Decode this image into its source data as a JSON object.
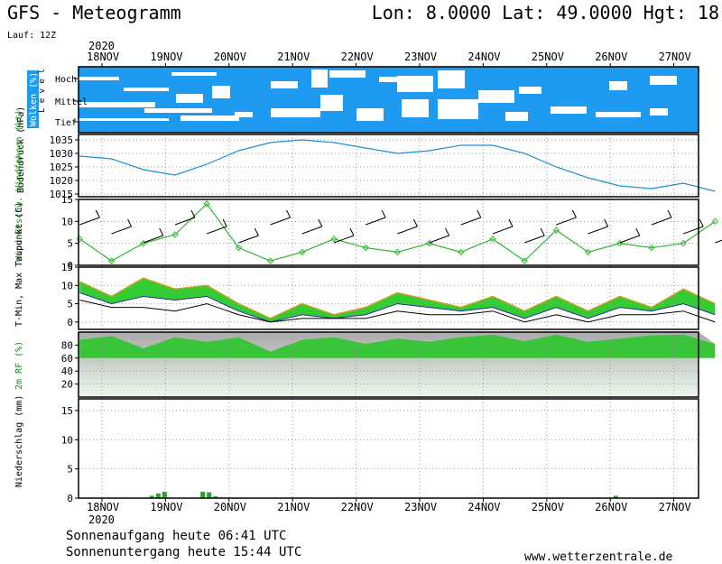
{
  "header": {
    "title": "GFS - Meteogramm",
    "coords": "Lon: 8.0000 Lat: 49.0000 Hgt: 18",
    "run": "Lauf: 12Z"
  },
  "dates": [
    "18NOV",
    "19NOV",
    "20NOV",
    "21NOV",
    "22NOV",
    "23NOV",
    "24NOV",
    "25NOV",
    "26NOV",
    "27NOV"
  ],
  "year": "2020",
  "footer": {
    "sunrise": "Sonnenaufgang heute 06:41 UTC",
    "sunset": "Sonnenuntergang heute 15:44 UTC",
    "site": "www.wetterzentrale.de"
  },
  "colors": {
    "clouds": "#1e9bf0",
    "pressure": "#1e90d8",
    "wind": "#2eb82e",
    "tmax": "#e63b2e",
    "tmin": "#2a2ab0",
    "humidity": "#3ac43a",
    "precip": "#2ea32e"
  },
  "chart_data": [
    {
      "type": "heatmap",
      "ylabel": "Wolken (%)",
      "levels": [
        "Hoch",
        "Mittel",
        "Tief"
      ],
      "level_axis_label": "L e v e l"
    },
    {
      "type": "line",
      "ylabel": "Bodendruck (hPa)",
      "ylim": [
        1014,
        1037
      ],
      "yticks": [
        1015,
        1020,
        1025,
        1030,
        1035
      ],
      "x": [
        0,
        0.5,
        1,
        1.5,
        2,
        2.5,
        3,
        3.5,
        4,
        4.5,
        5,
        5.5,
        6,
        6.5,
        7,
        7.5,
        8,
        8.5,
        9,
        9.5,
        10
      ],
      "values": [
        1029,
        1028,
        1024,
        1022,
        1026,
        1031,
        1034,
        1035,
        1034,
        1032,
        1030,
        1031,
        1033,
        1033,
        1030,
        1025,
        1021,
        1018,
        1017,
        1019,
        1016
      ]
    },
    {
      "type": "line",
      "ylabel": "Wind Geschw. Windfahnen (kt)",
      "ylim": [
        0,
        15
      ],
      "yticks": [
        0,
        5,
        10,
        15
      ],
      "x": [
        0,
        0.5,
        1,
        1.5,
        2,
        2.5,
        3,
        3.5,
        4,
        4.5,
        5,
        5.5,
        6,
        6.5,
        7,
        7.5,
        8,
        8.5,
        9,
        9.5,
        10
      ],
      "values": [
        6,
        1,
        5,
        7,
        14,
        4,
        1,
        3,
        6,
        4,
        3,
        5,
        3,
        6,
        1,
        8,
        3,
        5,
        4,
        5,
        10
      ]
    },
    {
      "type": "area",
      "ylabel": "T-Min, Max Taupunkt (C)",
      "ylim": [
        -2,
        15
      ],
      "yticks": [
        0,
        5,
        10,
        15
      ],
      "x": [
        0,
        0.5,
        1,
        1.5,
        2,
        2.5,
        3,
        3.5,
        4,
        4.5,
        5,
        5.5,
        6,
        6.5,
        7,
        7.5,
        8,
        8.5,
        9,
        9.5,
        10
      ],
      "series": [
        {
          "name": "Max",
          "values": [
            11,
            7,
            12,
            9,
            10,
            5,
            1,
            5,
            2,
            4,
            8,
            6,
            4,
            7,
            3,
            7,
            3,
            7,
            4,
            9,
            5
          ]
        },
        {
          "name": "Min",
          "values": [
            8,
            5,
            7,
            6,
            7,
            3,
            0,
            2,
            1,
            2,
            5,
            4,
            3,
            4,
            1,
            4,
            1,
            4,
            3,
            5,
            2
          ]
        },
        {
          "name": "Taupunkt",
          "values": [
            6,
            4,
            4,
            3,
            5,
            2,
            0,
            1,
            1,
            1,
            3,
            2,
            2,
            3,
            0,
            2,
            0,
            2,
            2,
            3,
            0
          ]
        }
      ]
    },
    {
      "type": "area",
      "ylabel": "2m RF (%)",
      "ylim": [
        0,
        100
      ],
      "yticks": [
        20,
        40,
        60,
        80
      ],
      "x": [
        0,
        0.5,
        1,
        1.5,
        2,
        2.5,
        3,
        3.5,
        4,
        4.5,
        5,
        5.5,
        6,
        6.5,
        7,
        7.5,
        8,
        8.5,
        9,
        9.5,
        10
      ],
      "values": [
        88,
        94,
        75,
        92,
        85,
        92,
        70,
        88,
        92,
        82,
        90,
        85,
        92,
        96,
        86,
        96,
        85,
        90,
        95,
        96,
        82
      ]
    },
    {
      "type": "bar",
      "ylabel": "Niederschlag (mm)",
      "ylim": [
        0,
        17
      ],
      "yticks": [
        0,
        5,
        10,
        15
      ],
      "x": [
        1.1,
        1.2,
        1.3,
        1.9,
        2.0,
        2.1,
        2.2,
        8.4
      ],
      "values": [
        0.4,
        0.8,
        1.1,
        1.1,
        1.0,
        0.3,
        0.1,
        0.4
      ]
    }
  ]
}
